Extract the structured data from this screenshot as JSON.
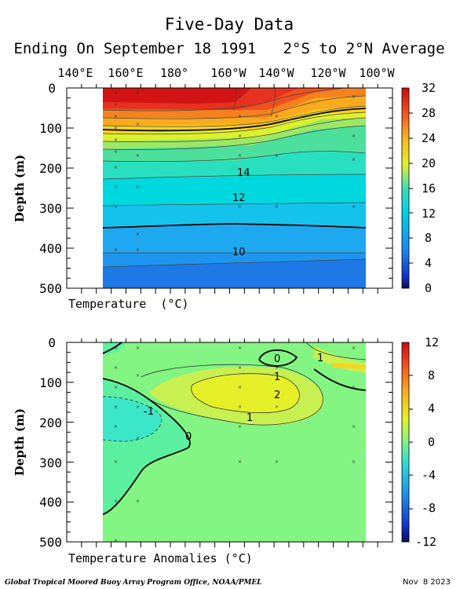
{
  "header": {
    "title": "Five-Day Data",
    "subtitle": "Ending On September 18 1991   2°S to 2°N Average"
  },
  "chart_data": [
    {
      "type": "heatmap",
      "name": "temperature",
      "xlabel": "Temperature  (°C)",
      "ylabel": "Depth (m)",
      "x_tick_labels": [
        "140°E",
        "160°E",
        "180°",
        "160°W",
        "140°W",
        "120°W",
        "100°W"
      ],
      "y_ticks": [
        0,
        100,
        200,
        300,
        400,
        500
      ],
      "ylim": [
        500,
        0
      ],
      "colorbar": {
        "min": 0,
        "max": 32,
        "ticks": [
          0,
          4,
          8,
          12,
          16,
          20,
          24,
          28,
          32
        ]
      },
      "contour_labels": [
        "14",
        "12",
        "10"
      ],
      "isotherm_depths": [
        {
          "label": "14",
          "depth": 205
        },
        {
          "label": "12",
          "depth": 275
        },
        {
          "label": "10",
          "depth": 410
        }
      ]
    },
    {
      "type": "heatmap",
      "name": "temperature-anomalies",
      "xlabel": "Temperature Anomalies (°C)",
      "ylabel": "Depth (m)",
      "x_tick_labels": [],
      "y_ticks": [
        0,
        100,
        200,
        300,
        400,
        500
      ],
      "ylim": [
        500,
        0
      ],
      "colorbar": {
        "min": -12,
        "max": 12,
        "ticks": [
          -12,
          -8,
          -4,
          0,
          4,
          8,
          12
        ]
      },
      "contour_labels": [
        "0",
        "1",
        "1",
        "2",
        "1",
        "-1",
        "0"
      ]
    }
  ],
  "footer": {
    "credit": "Global Tropical Moored Buoy Array Program Office, NOAA/PMEL",
    "date": "Nov  8 2023"
  }
}
